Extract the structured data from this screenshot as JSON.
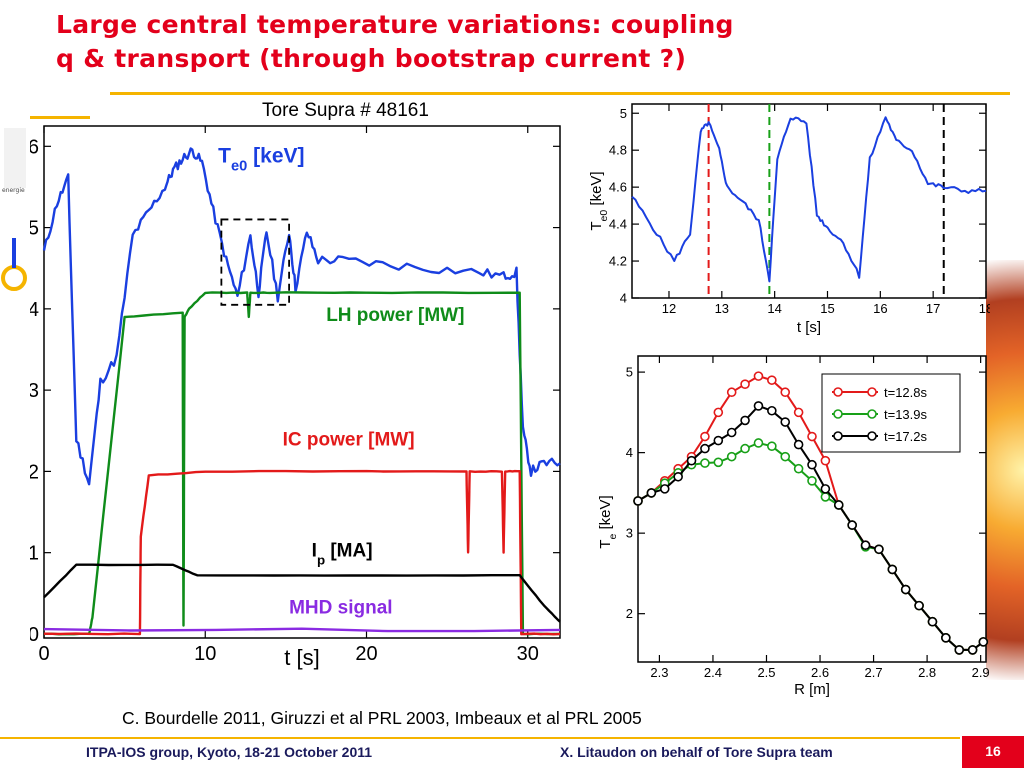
{
  "slide": {
    "title_line1": "Large central temperature variations: coupling",
    "title_line2": "q & transport (through bootstrap current ?)",
    "shot_label": "Tore Supra # 48161",
    "citation": "C. Bourdelle 2011, Giruzzi et al PRL 2003, Imbeaux et al PRL 2005",
    "footer_left": "ITPA-IOS group, Kyoto, 18-21 October 2011",
    "footer_right": "X. Litaudon on behalf of Tore Supra team",
    "page_number": "16",
    "logo_text": "energie",
    "colors": {
      "title": "#e3001b",
      "accent": "#f5b400",
      "footer_text": "#1a1a5c"
    }
  },
  "chart_data": [
    {
      "type": "line",
      "id": "main",
      "xlabel": "t [s]",
      "ylabel": "",
      "xlim": [
        0,
        32
      ],
      "ylim": [
        -0.05,
        6.25
      ],
      "xticks": [
        0,
        10,
        20,
        30
      ],
      "yticks": [
        0,
        1,
        2,
        3,
        4,
        5,
        6
      ],
      "grid": false,
      "series": [
        {
          "name": "T",
          "sub": "e0",
          "unit": " [keV]",
          "color": "#1a3fe0",
          "x": [
            0,
            0.8,
            1.5,
            2,
            2.8,
            3.5,
            4.5,
            5.5,
            6.5,
            7.5,
            8.0,
            8.6,
            9.2,
            9.8,
            10.5,
            11.3,
            12.0,
            12.8,
            13.3,
            13.8,
            14.5,
            15.2,
            15.6,
            16.3,
            17.0,
            18.5,
            21,
            24,
            27,
            28.5,
            29.3,
            29.7,
            30.2,
            31,
            32
          ],
          "values": [
            4.7,
            5.3,
            5.6,
            2.4,
            1.85,
            3.1,
            3.4,
            4.9,
            5.2,
            5.5,
            5.7,
            5.85,
            5.95,
            5.8,
            5.2,
            4.6,
            4.15,
            4.9,
            4.2,
            4.95,
            4.15,
            4.95,
            4.25,
            4.95,
            4.6,
            4.6,
            4.55,
            4.5,
            4.45,
            4.4,
            4.45,
            2.5,
            2.0,
            2.1,
            2.1
          ]
        },
        {
          "name": "LH power [MW]",
          "color": "#0f8c1a",
          "x": [
            0,
            2.8,
            3.0,
            5.0,
            8.6,
            8.65,
            8.72,
            9.0,
            10.0,
            12.6,
            12.7,
            12.8,
            14,
            20,
            29.5,
            29.7,
            32
          ],
          "values": [
            0,
            0,
            0.2,
            3.9,
            3.95,
            0.1,
            3.9,
            4.0,
            4.2,
            4.2,
            3.9,
            4.2,
            4.2,
            4.2,
            4.2,
            0,
            0
          ]
        },
        {
          "name": "IC power [MW]",
          "color": "#e31a1a",
          "x": [
            0,
            5.95,
            6.0,
            6.5,
            10,
            20,
            26.2,
            26.3,
            26.4,
            28.4,
            28.5,
            28.6,
            29.5,
            29.6,
            32
          ],
          "values": [
            0,
            0,
            1.2,
            1.95,
            2.0,
            2.0,
            2.0,
            1.0,
            2.0,
            2.0,
            1.0,
            2.0,
            2.0,
            0,
            0
          ]
        },
        {
          "name": "I",
          "sub": "p",
          "unit": " [MA]",
          "color": "#000000",
          "x": [
            0,
            2.0,
            8.0,
            9.5,
            19,
            29.5,
            31,
            32
          ],
          "values": [
            0.45,
            0.85,
            0.85,
            0.72,
            0.72,
            0.72,
            0.35,
            0.15
          ]
        },
        {
          "name": "MHD signal",
          "color": "#8a2be2",
          "x": [
            0,
            32
          ],
          "values": [
            0.05,
            0.05
          ]
        }
      ]
    },
    {
      "type": "line",
      "id": "zoom",
      "xlabel": "t [s]",
      "ylabel": "T",
      "ylabel_sub": "e0",
      "ylabel_unit": " [keV]",
      "xlim": [
        11.3,
        18
      ],
      "ylim": [
        4.0,
        5.05
      ],
      "xticks": [
        12,
        13,
        14,
        15,
        16,
        17,
        18
      ],
      "yticks": [
        4,
        4.2,
        4.4,
        4.6,
        4.8,
        5
      ],
      "grid": false,
      "markers_t": [
        12.75,
        13.9,
        17.2
      ],
      "marker_colors": [
        "#e31a1a",
        "#18a018",
        "#000000"
      ],
      "series": [
        {
          "color": "#1a3fe0",
          "x": [
            11.3,
            11.7,
            12.1,
            12.4,
            12.6,
            12.75,
            12.95,
            13.1,
            13.4,
            13.7,
            13.9,
            14.05,
            14.3,
            14.6,
            14.8,
            15.0,
            15.3,
            15.6,
            15.8,
            16.1,
            16.3,
            16.6,
            16.9,
            17.2,
            17.6,
            18
          ],
          "values": [
            4.55,
            4.38,
            4.2,
            4.35,
            4.9,
            4.95,
            4.8,
            4.6,
            4.52,
            4.42,
            4.1,
            4.75,
            4.98,
            4.95,
            4.45,
            4.38,
            4.3,
            4.12,
            4.75,
            4.98,
            4.85,
            4.8,
            4.62,
            4.6,
            4.58,
            4.58
          ]
        }
      ]
    },
    {
      "type": "line",
      "id": "profile",
      "xlabel": "R [m]",
      "ylabel": "T",
      "ylabel_sub": "e",
      "ylabel_unit": " [keV]",
      "xlim": [
        2.26,
        2.91
      ],
      "ylim": [
        1.4,
        5.2
      ],
      "xticks": [
        2.3,
        2.4,
        2.5,
        2.6,
        2.7,
        2.8,
        2.9
      ],
      "yticks": [
        2,
        3,
        4,
        5
      ],
      "grid": false,
      "legend": "top-right",
      "x": [
        2.26,
        2.285,
        2.31,
        2.335,
        2.36,
        2.385,
        2.41,
        2.435,
        2.46,
        2.485,
        2.51,
        2.535,
        2.56,
        2.585,
        2.61,
        2.635,
        2.66,
        2.685,
        2.71,
        2.735,
        2.76,
        2.785,
        2.81,
        2.835,
        2.86,
        2.885,
        2.905
      ],
      "series": [
        {
          "name": "t=12.8s",
          "color": "#e31a1a",
          "values": [
            3.4,
            3.5,
            3.65,
            3.8,
            3.95,
            4.2,
            4.5,
            4.75,
            4.85,
            4.95,
            4.9,
            4.75,
            4.5,
            4.2,
            3.9,
            3.35,
            3.1,
            2.85,
            2.8,
            2.55,
            2.3,
            2.1,
            1.9,
            1.7,
            1.55,
            1.55,
            1.65
          ]
        },
        {
          "name": "t=13.9s",
          "color": "#18a018",
          "values": [
            3.4,
            3.5,
            3.62,
            3.75,
            3.85,
            3.87,
            3.88,
            3.95,
            4.05,
            4.12,
            4.08,
            3.95,
            3.8,
            3.65,
            3.45,
            3.35,
            3.1,
            2.83,
            2.8,
            2.55,
            2.3,
            2.1,
            1.9,
            1.7,
            1.55,
            1.55,
            1.65
          ]
        },
        {
          "name": "t=17.2s",
          "color": "#000000",
          "values": [
            3.4,
            3.5,
            3.55,
            3.7,
            3.9,
            4.05,
            4.15,
            4.25,
            4.4,
            4.58,
            4.52,
            4.38,
            4.1,
            3.85,
            3.55,
            3.35,
            3.1,
            2.85,
            2.8,
            2.55,
            2.3,
            2.1,
            1.9,
            1.7,
            1.55,
            1.55,
            1.65
          ]
        }
      ]
    }
  ]
}
